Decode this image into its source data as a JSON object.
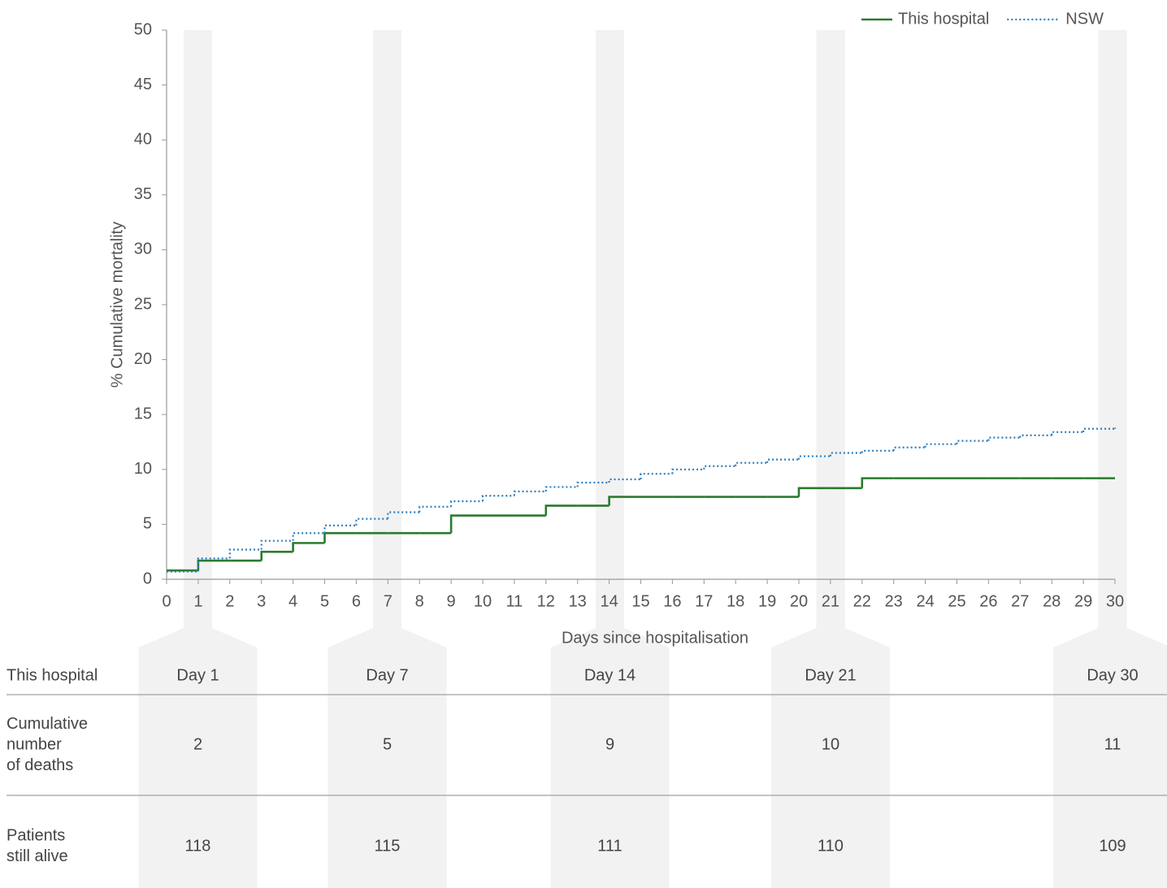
{
  "chart_data": {
    "type": "step",
    "x_label": "Days since hospitalisation",
    "y_label": "% Cumulative mortality",
    "x": [
      0,
      1,
      2,
      3,
      4,
      5,
      6,
      7,
      8,
      9,
      10,
      11,
      12,
      13,
      14,
      15,
      16,
      17,
      18,
      19,
      20,
      21,
      22,
      23,
      24,
      25,
      26,
      27,
      28,
      29,
      30
    ],
    "xlim": [
      0,
      30
    ],
    "xticks": [
      0,
      1,
      2,
      3,
      4,
      5,
      6,
      7,
      8,
      9,
      10,
      11,
      12,
      13,
      14,
      15,
      16,
      17,
      18,
      19,
      20,
      21,
      22,
      23,
      24,
      25,
      26,
      27,
      28,
      29,
      30
    ],
    "ylim": [
      0,
      50
    ],
    "yticks": [
      0,
      5,
      10,
      15,
      20,
      25,
      30,
      35,
      40,
      45,
      50
    ],
    "legend": "top-right",
    "series": [
      {
        "name": "This hospital",
        "color": "#2a7a2e",
        "style": "solid",
        "values": [
          0.8,
          1.7,
          1.7,
          2.5,
          3.3,
          4.2,
          4.2,
          4.2,
          4.2,
          5.8,
          5.8,
          5.8,
          6.7,
          6.7,
          7.5,
          7.5,
          7.5,
          7.5,
          7.5,
          7.5,
          8.3,
          8.3,
          9.2,
          9.2,
          9.2,
          9.2,
          9.2,
          9.2,
          9.2,
          9.2,
          9.2
        ]
      },
      {
        "name": "NSW",
        "color": "#2e7fbf",
        "style": "dotted",
        "values": [
          0.7,
          1.9,
          2.7,
          3.5,
          4.2,
          4.9,
          5.5,
          6.1,
          6.6,
          7.1,
          7.6,
          8.0,
          8.4,
          8.8,
          9.1,
          9.6,
          10.0,
          10.3,
          10.6,
          10.9,
          11.2,
          11.5,
          11.7,
          12.0,
          12.3,
          12.6,
          12.9,
          13.1,
          13.4,
          13.7,
          13.8
        ]
      }
    ]
  },
  "table": {
    "header": "This hospital",
    "columns": [
      "Day 1",
      "Day 7",
      "Day 14",
      "Day 21",
      "Day 30"
    ],
    "rows": [
      {
        "label_lines": [
          "Cumulative",
          "number",
          "of deaths"
        ],
        "values": [
          "2",
          "5",
          "9",
          "10",
          "11"
        ]
      },
      {
        "label_lines": [
          "Patients",
          "still alive"
        ],
        "values": [
          "118",
          "115",
          "111",
          "110",
          "109"
        ]
      }
    ]
  }
}
